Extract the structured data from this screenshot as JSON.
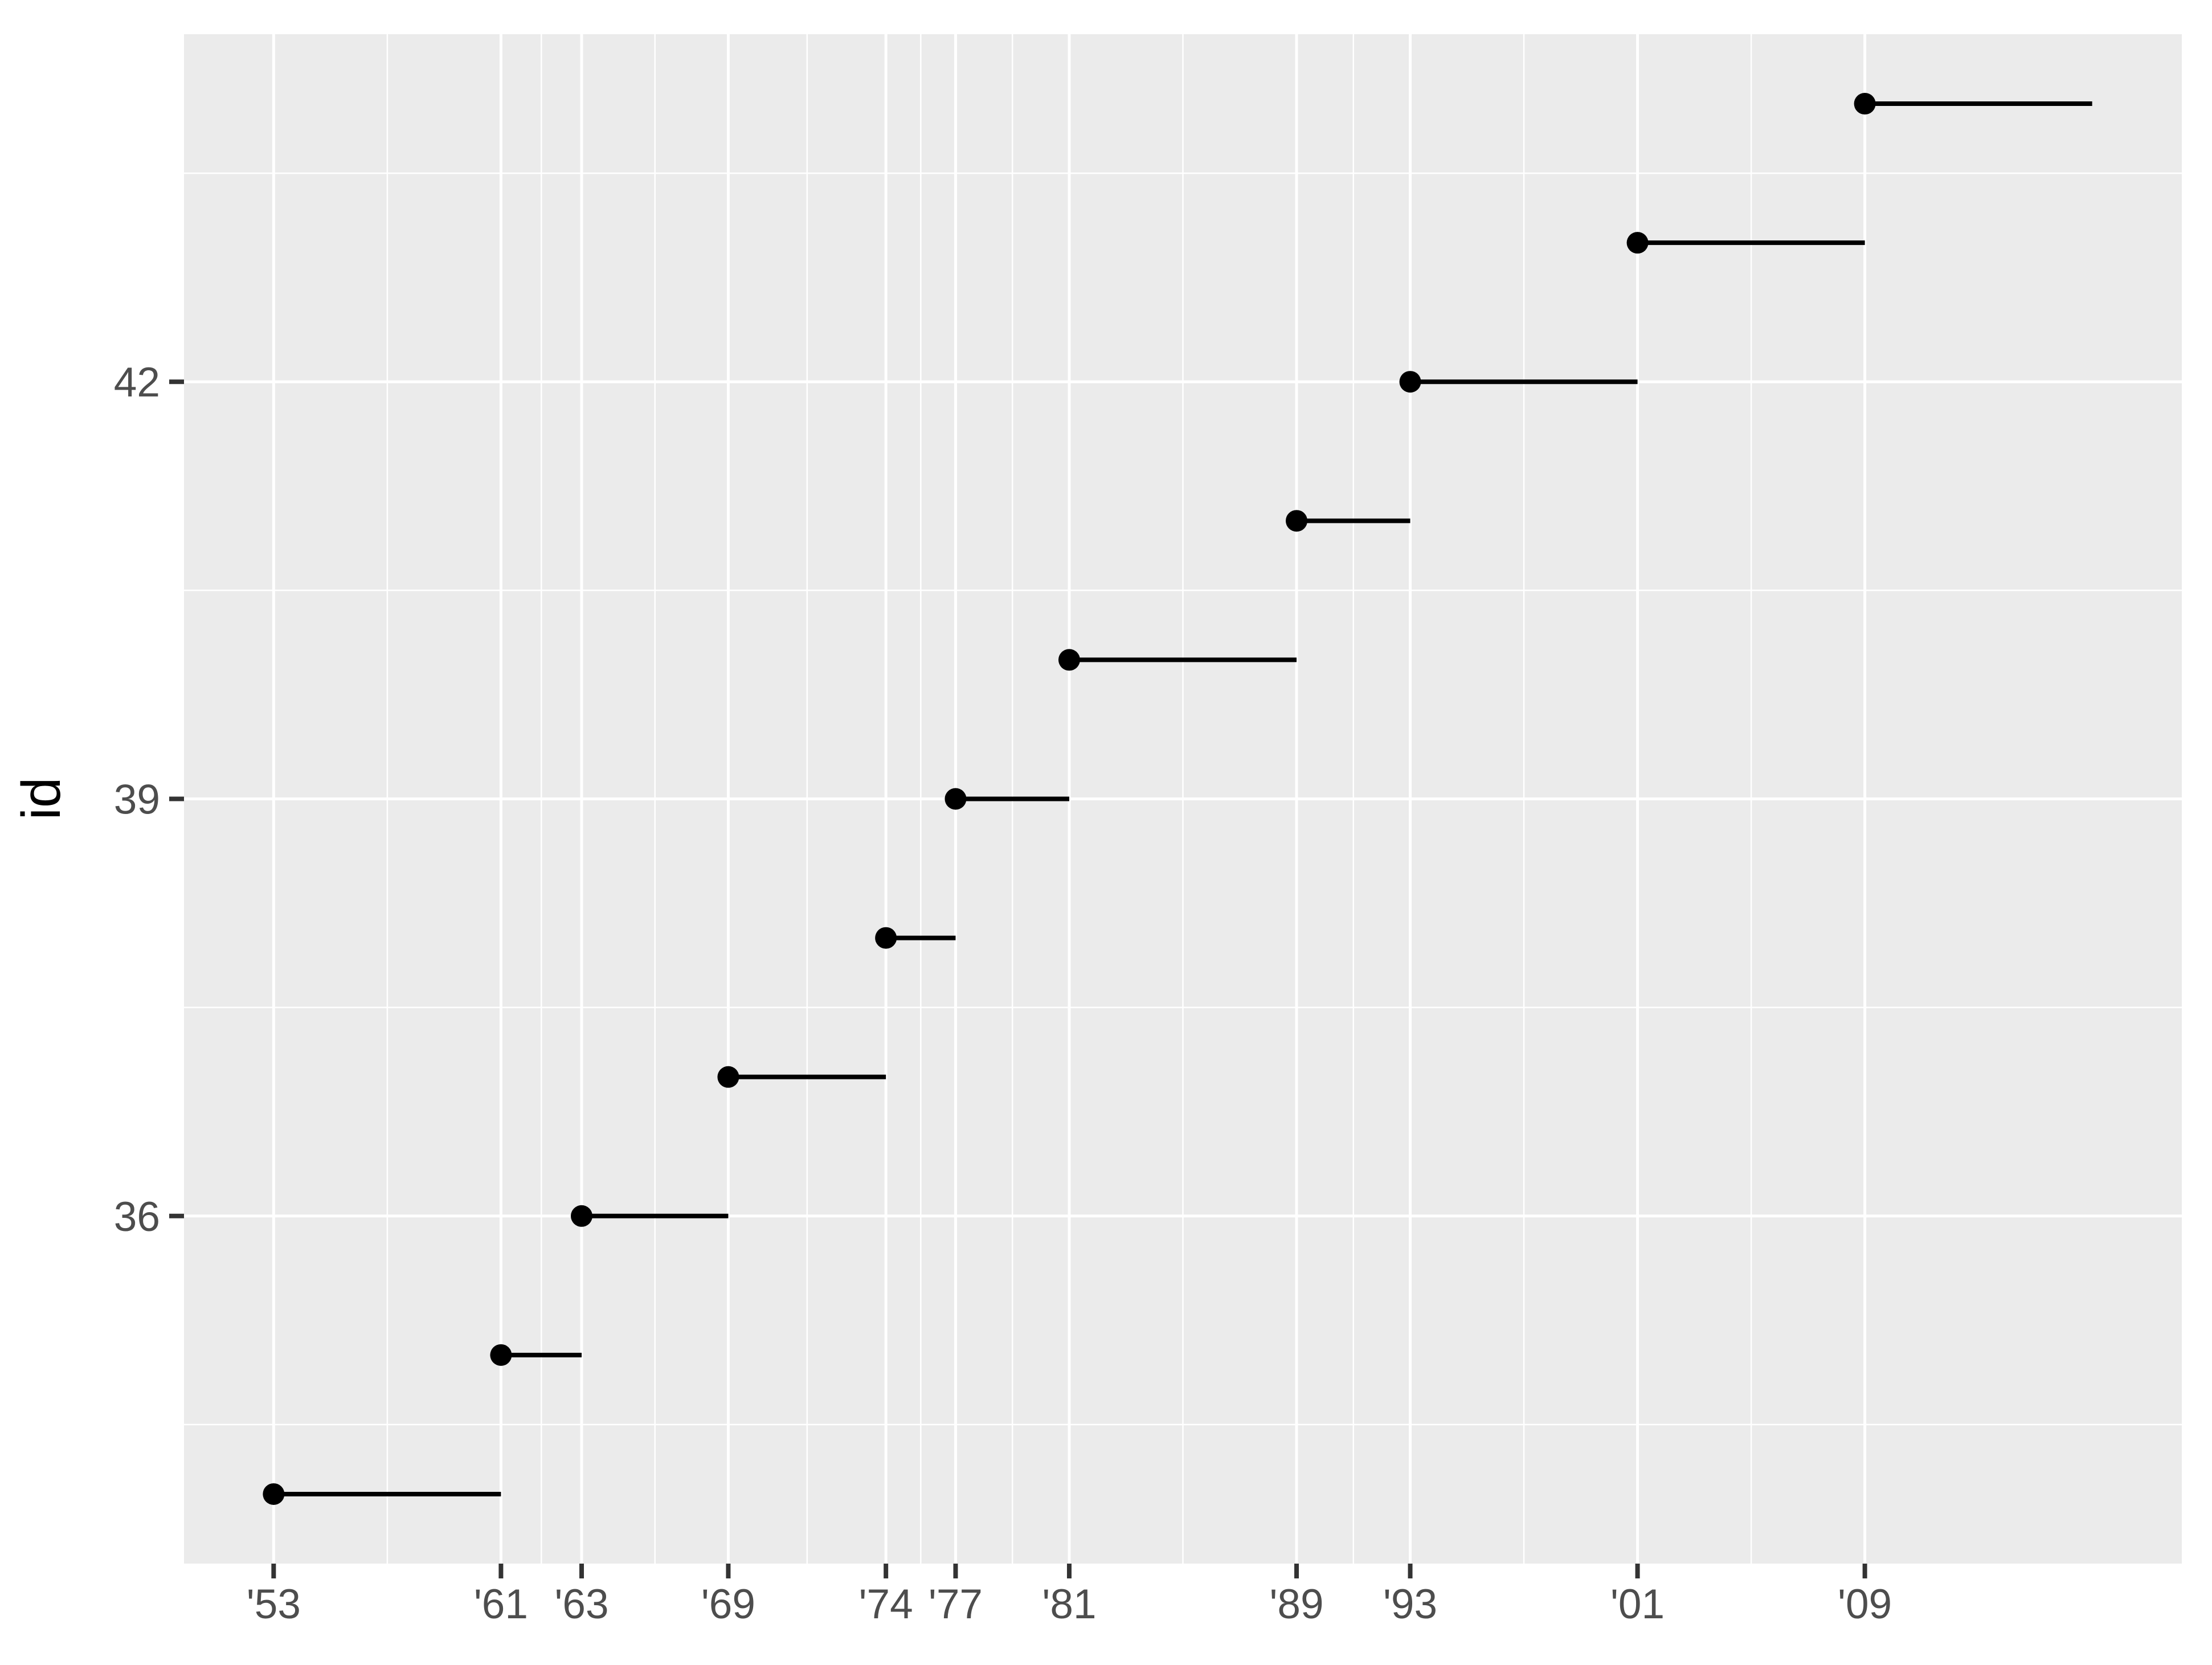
{
  "chart_data": {
    "type": "segment",
    "title": "",
    "xlabel": "",
    "ylabel": "id",
    "grid": "major-and-minor",
    "legend": "none",
    "x_axis": {
      "lim": [
        1949.9,
        2020.21
      ],
      "breaks": [
        1953.055,
        1961.055,
        1963.894,
        1969.055,
        1974.603,
        1977.055,
        1981.055,
        1989.055,
        1993.055,
        2001.055,
        2009.055
      ],
      "labels": [
        "'53",
        "'61",
        "'63",
        "'69",
        "'74",
        "'77",
        "'81",
        "'89",
        "'93",
        "'01",
        "'09"
      ],
      "minor_breaks": [
        1957.055,
        1962.475,
        1966.475,
        1971.829,
        1975.829,
        1979.055,
        1985.055,
        1991.055,
        1997.055,
        2005.055
      ]
    },
    "y_axis": {
      "lim": [
        33.5,
        44.5
      ],
      "breaks": [
        36,
        39,
        42
      ],
      "labels": [
        "36",
        "39",
        "42"
      ],
      "minor_breaks": [
        34.5,
        37.5,
        40.5,
        43.5
      ]
    },
    "segments": [
      {
        "id": 34,
        "start": 1953.055,
        "end": 1961.055
      },
      {
        "id": 35,
        "start": 1961.055,
        "end": 1963.894
      },
      {
        "id": 36,
        "start": 1963.894,
        "end": 1969.055
      },
      {
        "id": 37,
        "start": 1969.055,
        "end": 1974.603
      },
      {
        "id": 38,
        "start": 1974.603,
        "end": 1977.055
      },
      {
        "id": 39,
        "start": 1977.055,
        "end": 1981.055
      },
      {
        "id": 40,
        "start": 1981.055,
        "end": 1989.055
      },
      {
        "id": 41,
        "start": 1989.055,
        "end": 1993.055
      },
      {
        "id": 42,
        "start": 1993.055,
        "end": 2001.055
      },
      {
        "id": 43,
        "start": 2001.055,
        "end": 2009.055
      },
      {
        "id": 44,
        "start": 2009.055,
        "end": 2017.055
      }
    ],
    "colors": {
      "panel_background": "#EBEBEB",
      "grid_line": "#FFFFFF",
      "data": "#000000",
      "tick_mark": "#333333",
      "tick_label": "#4D4D4D",
      "axis_title": "#000000",
      "outer_background": "#FFFFFF"
    }
  }
}
